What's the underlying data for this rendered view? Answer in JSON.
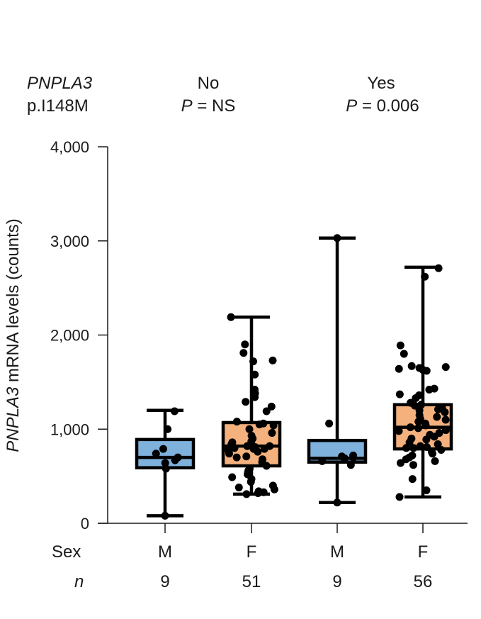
{
  "header": {
    "genotype_gene": "PNPLA3",
    "genotype_variant": "p.I148M",
    "groups": [
      {
        "label": "No",
        "p_prefix": "P",
        "p_suffix": " = NS"
      },
      {
        "label": "Yes",
        "p_prefix": "P",
        "p_suffix": " = 0.006"
      }
    ]
  },
  "rows": {
    "sex_label": "Sex",
    "n_label": "n"
  },
  "colors": {
    "male_box": "#7fb1dd",
    "female_box": "#f4b17e",
    "stroke": "#000000",
    "point": "#000000"
  },
  "chart_data": {
    "type": "box",
    "ylabel_gene": "PNPLA3",
    "ylabel_rest": " mRNA levels (counts)",
    "ylim": [
      0,
      4000
    ],
    "yticks": [
      0,
      1000,
      2000,
      3000,
      4000
    ],
    "ytick_labels": [
      "0",
      "1,000",
      "2,000",
      "3,000",
      "4,000"
    ],
    "boxes": [
      {
        "group": "No",
        "sex": "M",
        "n": "9",
        "min": 80,
        "q1": 590,
        "median": 700,
        "q3": 890,
        "max": 1200,
        "points": [
          1190,
          1000,
          790,
          740,
          700,
          670,
          640,
          580,
          80
        ]
      },
      {
        "group": "No",
        "sex": "F",
        "n": "51",
        "min": 310,
        "q1": 610,
        "median": 820,
        "q3": 1070,
        "max": 2190,
        "points": [
          2190,
          1900,
          1810,
          1730,
          1720,
          1580,
          1420,
          1380,
          1340,
          1290,
          1240,
          1190,
          1080,
          1060,
          1050,
          1040,
          1000,
          960,
          930,
          900,
          870,
          860,
          840,
          820,
          820,
          810,
          800,
          790,
          790,
          780,
          760,
          740,
          710,
          700,
          680,
          650,
          610,
          580,
          560,
          540,
          520,
          490,
          470,
          440,
          400,
          380,
          360,
          340,
          330,
          320,
          310
        ]
      },
      {
        "group": "Yes",
        "sex": "M",
        "n": "9",
        "min": 220,
        "q1": 650,
        "median": 690,
        "q3": 880,
        "max": 3030,
        "points": [
          3030,
          1060,
          720,
          710,
          700,
          690,
          660,
          620,
          220
        ]
      },
      {
        "group": "Yes",
        "sex": "F",
        "n": "56",
        "min": 280,
        "q1": 790,
        "median": 1020,
        "q3": 1260,
        "max": 2720,
        "points": [
          2710,
          2620,
          1890,
          1800,
          1670,
          1660,
          1650,
          1640,
          1630,
          1620,
          1430,
          1420,
          1370,
          1360,
          1330,
          1280,
          1260,
          1250,
          1230,
          1210,
          1200,
          1180,
          1150,
          1130,
          1110,
          1100,
          1080,
          1060,
          1040,
          1020,
          1010,
          990,
          980,
          960,
          940,
          920,
          900,
          890,
          860,
          840,
          820,
          810,
          800,
          800,
          780,
          760,
          740,
          720,
          700,
          680,
          660,
          640,
          620,
          470,
          350,
          280
        ]
      }
    ]
  }
}
